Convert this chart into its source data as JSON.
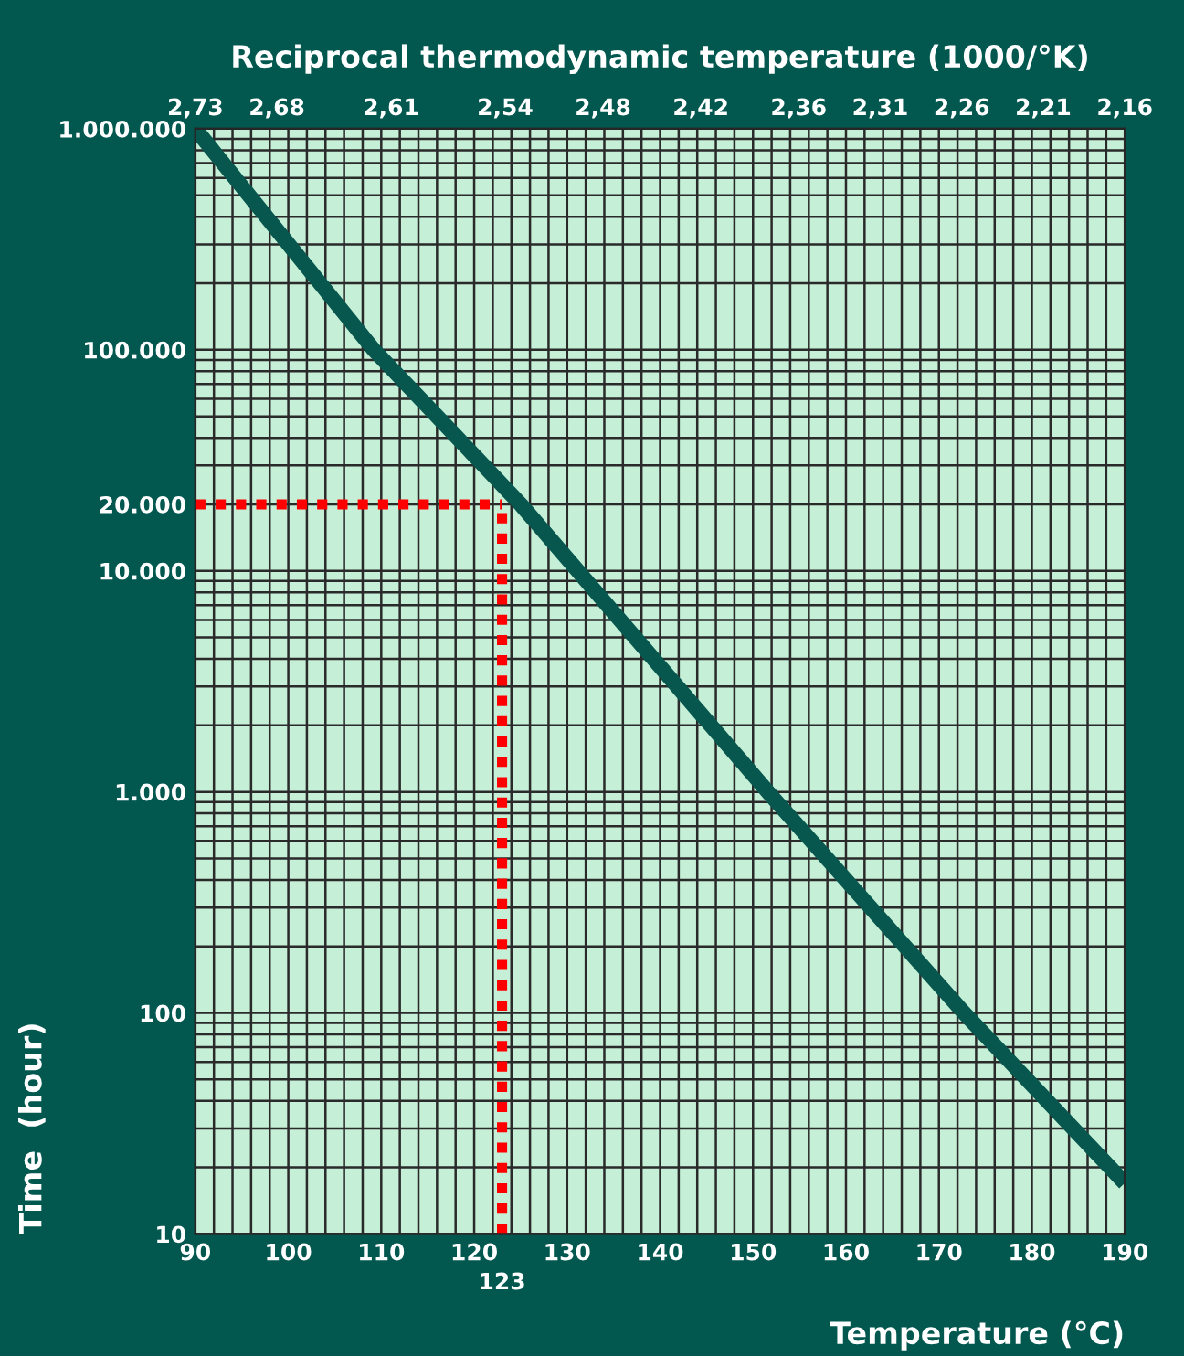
{
  "chart_data": {
    "type": "line",
    "x2label": "Reciprocal thermodynamic temperature (1000/°K)",
    "xlabel": "Temperature (°C)",
    "ylabel": "Time  (hour)",
    "x": [
      90,
      109.2,
      125,
      151.6,
      172.7,
      190
    ],
    "series": [
      {
        "color": "#07574f",
        "values": [
          1000000,
          100000,
          20000,
          1000,
          100,
          17
        ]
      }
    ],
    "log": "y",
    "xlim": [
      90,
      190
    ],
    "xticks": [
      90,
      100,
      110,
      120,
      130,
      140,
      150,
      160,
      170,
      180,
      190
    ],
    "x2lim": [
      2.73,
      2.16
    ],
    "x2ticks": [
      {
        "value": 2.73,
        "label": "2,73"
      },
      {
        "value": 2.68,
        "label": "2,68"
      },
      {
        "value": 2.61,
        "label": "2,61"
      },
      {
        "value": 2.54,
        "label": "2,54"
      },
      {
        "value": 2.48,
        "label": "2,48"
      },
      {
        "value": 2.42,
        "label": "2,42"
      },
      {
        "value": 2.36,
        "label": "2,36"
      },
      {
        "value": 2.31,
        "label": "2,31"
      },
      {
        "value": 2.26,
        "label": "2,26"
      },
      {
        "value": 2.21,
        "label": "2,21"
      },
      {
        "value": 2.16,
        "label": "2,16"
      }
    ],
    "ylim": [
      10,
      1000000
    ],
    "yticks": [
      {
        "value": 10,
        "label": "10"
      },
      {
        "value": 100,
        "label": "100"
      },
      {
        "value": 1000,
        "label": "1.000"
      },
      {
        "value": 10000,
        "label": "10.000"
      },
      {
        "value": 20000,
        "label": "20.000"
      },
      {
        "value": 100000,
        "label": "100.000"
      },
      {
        "value": 1000000,
        "label": "1.000.000"
      }
    ],
    "ref_lines": [
      {
        "axis": "x",
        "value": 123,
        "label": "123",
        "color": "#ff0000",
        "line_style": "dotted"
      },
      {
        "axis": "y",
        "value": 20000,
        "color": "#ff0000",
        "line_style": "dotted"
      }
    ],
    "grid": true,
    "marker": "none",
    "line_style": "solid",
    "legend": false
  }
}
